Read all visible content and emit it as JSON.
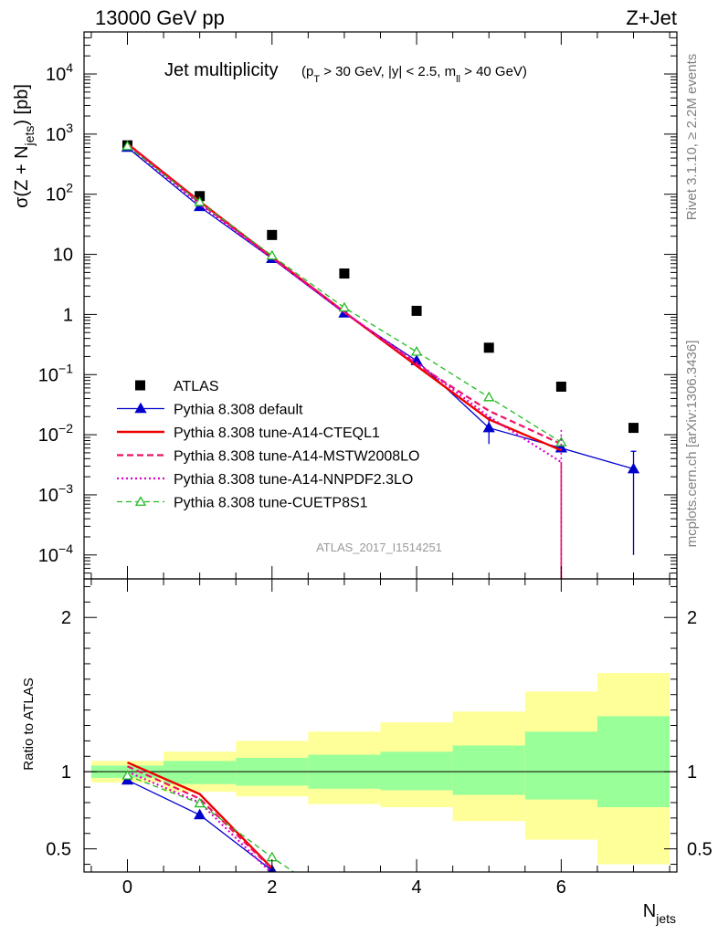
{
  "header": {
    "energy_label": "13000 GeV pp",
    "process_label": "Z+Jet"
  },
  "side_labels": {
    "rivet": "Rivet 3.1.10, ≥ 2.2M events",
    "mcplots": "mcplots.cern.ch [arXiv:1306.3436]"
  },
  "watermark": "ATLAS_2017_I1514251",
  "colors": {
    "data": "#000000",
    "default": "#0000cc",
    "cteql1": "#ee0000",
    "mstw": "#ee1166",
    "nnpdf": "#dd00cc",
    "cuetp8s1": "#22bb22",
    "band_outer": "#ffff99",
    "band_inner": "#99ff99"
  },
  "chart_data": [
    {
      "type": "scatter",
      "panel": "main",
      "title": "Jet multiplicity",
      "title_cuts": "(pT > 30 GeV, |y| < 2.5, mll > 40 GeV)",
      "ylabel": "σ(Z + Njets) [pb]",
      "xlim": [
        -0.6,
        7.6
      ],
      "ylim": [
        4e-05,
        50000.0
      ],
      "yscale": "log",
      "yticks": [
        {
          "v": 0.001,
          "base": "10",
          "exp": "−3"
        },
        {
          "v": 0.01,
          "base": "10",
          "exp": "−2"
        },
        {
          "v": 0.1,
          "base": "10",
          "exp": "−1"
        },
        {
          "v": 1,
          "base": "1",
          "exp": ""
        },
        {
          "v": 10,
          "base": "10",
          "exp": ""
        },
        {
          "v": 100,
          "base": "10",
          "exp": "2"
        },
        {
          "v": 1000,
          "base": "10",
          "exp": "3"
        },
        {
          "v": 10000,
          "base": "10",
          "exp": "4"
        },
        {
          "v": 0.0001,
          "base": "10",
          "exp": "−4"
        }
      ],
      "legend_position": "lower-left",
      "series": [
        {
          "name": "ATLAS",
          "key": "data",
          "style": "square",
          "x": [
            0,
            1,
            2,
            3,
            4,
            5,
            6,
            7
          ],
          "y": [
            650,
            93,
            21,
            4.8,
            1.15,
            0.28,
            0.063,
            0.013
          ]
        },
        {
          "name": "Pythia 8.308 default",
          "key": "default",
          "style": "solid-triangle",
          "x": [
            0,
            1,
            2,
            3,
            4,
            5,
            6,
            7
          ],
          "y": [
            600,
            62,
            8.5,
            1.05,
            0.17,
            0.013,
            0.006,
            0.0027
          ],
          "err": [
            0,
            0,
            0,
            0,
            0,
            0.006,
            0,
            0.0026
          ]
        },
        {
          "name": "Pythia 8.308 tune-A14-CTEQL1",
          "key": "cteql1",
          "style": "solid",
          "x": [
            0,
            1,
            2,
            3,
            4,
            5,
            6
          ],
          "y": [
            690,
            76,
            9.0,
            1.1,
            0.14,
            0.018,
            0.0055
          ]
        },
        {
          "name": "Pythia 8.308 tune-A14-MSTW2008LO",
          "key": "mstw",
          "style": "dashed",
          "x": [
            0,
            1,
            2,
            3,
            4,
            5,
            6
          ],
          "y": [
            670,
            72,
            8.8,
            1.1,
            0.15,
            0.025,
            0.007
          ]
        },
        {
          "name": "Pythia 8.308 tune-A14-NNPDF2.3LO",
          "key": "nnpdf",
          "style": "dotted",
          "x": [
            0,
            1,
            2,
            3,
            4,
            5,
            6
          ],
          "y": [
            640,
            68,
            8.6,
            1.08,
            0.16,
            0.02,
            0.0035
          ]
        },
        {
          "name": "Pythia 8.308 tune-CUETP8S1",
          "key": "cuetp8s1",
          "style": "dashed-open-triangle",
          "x": [
            0,
            1,
            2,
            3,
            4,
            5,
            6
          ],
          "y": [
            630,
            74,
            9.5,
            1.3,
            0.24,
            0.042,
            0.0075
          ]
        }
      ]
    },
    {
      "type": "scatter",
      "panel": "ratio",
      "ylabel": "Ratio to ATLAS",
      "xlabel": "Njets",
      "xlim": [
        -0.6,
        7.6
      ],
      "ylim": [
        0.35,
        2.25
      ],
      "yticks": [
        {
          "v": 0.5,
          "label": "0.5"
        },
        {
          "v": 1,
          "label": "1"
        },
        {
          "v": 2,
          "label": "2"
        }
      ],
      "xticks": [
        {
          "v": 0,
          "label": "0"
        },
        {
          "v": 2,
          "label": "2"
        },
        {
          "v": 4,
          "label": "4"
        },
        {
          "v": 6,
          "label": "6"
        }
      ],
      "bands": [
        {
          "x0": -0.5,
          "x1": 0.5,
          "outer": [
            0.93,
            1.07
          ],
          "inner": [
            0.96,
            1.04
          ]
        },
        {
          "x0": 0.5,
          "x1": 1.5,
          "outer": [
            0.87,
            1.13
          ],
          "inner": [
            0.92,
            1.07
          ]
        },
        {
          "x0": 1.5,
          "x1": 2.5,
          "outer": [
            0.84,
            1.2
          ],
          "inner": [
            0.91,
            1.09
          ]
        },
        {
          "x0": 2.5,
          "x1": 3.5,
          "outer": [
            0.79,
            1.26
          ],
          "inner": [
            0.89,
            1.11
          ]
        },
        {
          "x0": 3.5,
          "x1": 4.5,
          "outer": [
            0.77,
            1.32
          ],
          "inner": [
            0.88,
            1.13
          ]
        },
        {
          "x0": 4.5,
          "x1": 5.5,
          "outer": [
            0.68,
            1.39
          ],
          "inner": [
            0.85,
            1.17
          ]
        },
        {
          "x0": 5.5,
          "x1": 6.5,
          "outer": [
            0.56,
            1.52
          ],
          "inner": [
            0.82,
            1.26
          ]
        },
        {
          "x0": 6.5,
          "x1": 7.5,
          "outer": [
            0.4,
            1.64
          ],
          "inner": [
            0.77,
            1.36
          ]
        }
      ],
      "series": [
        {
          "key": "default",
          "x": [
            0,
            1,
            2
          ],
          "y": [
            0.945,
            0.72,
            0.36
          ]
        },
        {
          "key": "cteql1",
          "x": [
            0,
            1,
            2
          ],
          "y": [
            1.06,
            0.855,
            0.375
          ]
        },
        {
          "key": "mstw",
          "x": [
            0,
            1,
            2
          ],
          "y": [
            1.035,
            0.825,
            0.37
          ]
        },
        {
          "key": "nnpdf",
          "x": [
            0,
            1,
            2
          ],
          "y": [
            1.0,
            0.8,
            0.34
          ]
        },
        {
          "key": "cuetp8s1",
          "x": [
            0,
            1,
            2,
            2.3
          ],
          "y": [
            0.975,
            0.795,
            0.445,
            0.35
          ]
        }
      ]
    }
  ]
}
